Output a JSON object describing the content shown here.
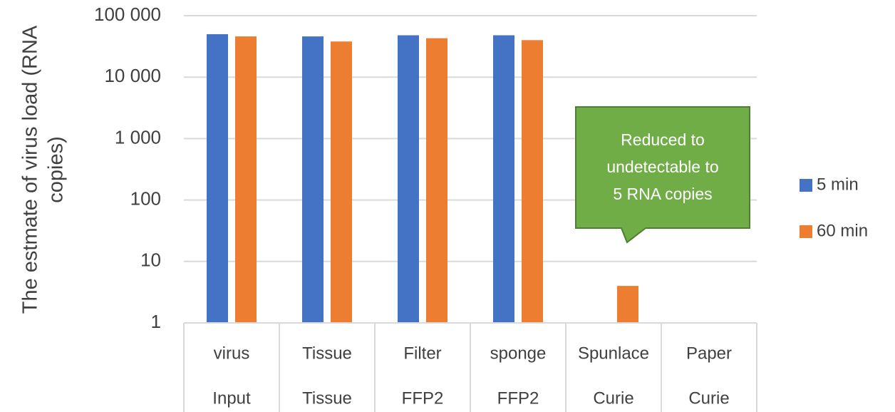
{
  "chart_data": {
    "type": "bar",
    "y_label": [
      "The estmate of virus load (RNA",
      "copies)"
    ],
    "categories": [
      [
        "virus",
        "Input"
      ],
      [
        "Tissue",
        "Tissue"
      ],
      [
        "Filter",
        "FFP2"
      ],
      [
        "sponge",
        "FFP2"
      ],
      [
        "Spunlace",
        "Curie"
      ],
      [
        "Paper",
        "Curie"
      ]
    ],
    "series": [
      {
        "name": "5 min",
        "color": "#4472c4",
        "values": [
          50000,
          46000,
          48000,
          48000,
          null,
          null
        ]
      },
      {
        "name": "60 min",
        "color": "#ed7d31",
        "values": [
          46000,
          38000,
          43000,
          40000,
          4,
          null
        ]
      }
    ],
    "log_scale": true,
    "ylim": [
      1,
      100000
    ],
    "yticks": [
      1,
      10,
      100,
      {
        "value": 1000,
        "label": "1 000"
      },
      {
        "value": 10000,
        "label": "10 000"
      },
      {
        "value": 100000,
        "label": "100 000"
      }
    ],
    "grid": true,
    "legend": "right",
    "annotation": {
      "lines": [
        "Reduced to",
        "undetectable to",
        "5 RNA copies"
      ],
      "color": "#70ad47"
    }
  }
}
